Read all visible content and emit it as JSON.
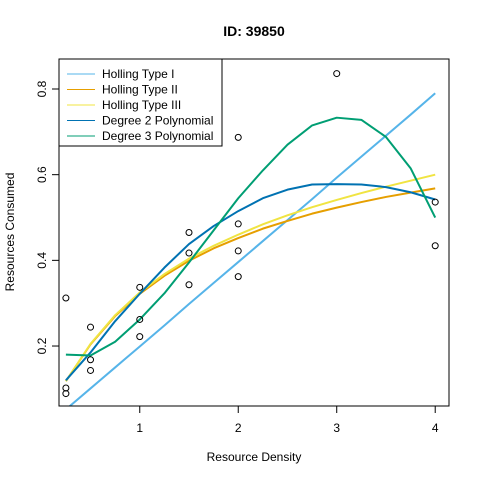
{
  "chart_data": {
    "type": "scatter",
    "title": "ID: 39850",
    "xlabel": "Resource Density",
    "ylabel": "Resources Consumed",
    "xlim": [
      0.18,
      4.14
    ],
    "ylim": [
      0.06,
      0.87
    ],
    "xticks": [
      1,
      2,
      3,
      4
    ],
    "yticks": [
      0.2,
      0.4,
      0.6,
      0.8
    ],
    "grid": false,
    "legend_position": "top-left",
    "points": [
      {
        "x": 0.25,
        "y": 0.312
      },
      {
        "x": 0.25,
        "y": 0.102
      },
      {
        "x": 0.25,
        "y": 0.089
      },
      {
        "x": 0.5,
        "y": 0.244
      },
      {
        "x": 0.5,
        "y": 0.168
      },
      {
        "x": 0.5,
        "y": 0.143
      },
      {
        "x": 1.0,
        "y": 0.337
      },
      {
        "x": 1.0,
        "y": 0.262
      },
      {
        "x": 1.0,
        "y": 0.222
      },
      {
        "x": 1.5,
        "y": 0.465
      },
      {
        "x": 1.5,
        "y": 0.417
      },
      {
        "x": 1.5,
        "y": 0.343
      },
      {
        "x": 2.0,
        "y": 0.687
      },
      {
        "x": 2.0,
        "y": 0.485
      },
      {
        "x": 2.0,
        "y": 0.422
      },
      {
        "x": 2.0,
        "y": 0.362
      },
      {
        "x": 3.0,
        "y": 0.836
      },
      {
        "x": 4.0,
        "y": 0.536
      },
      {
        "x": 4.0,
        "y": 0.434
      }
    ],
    "series": [
      {
        "name": "Holling Type I",
        "color": "#56B4E9",
        "x": [
          0.25,
          0.5,
          0.75,
          1.0,
          1.25,
          1.5,
          1.75,
          2.0,
          2.25,
          2.5,
          2.75,
          3.0,
          3.25,
          3.5,
          3.75,
          4.0
        ],
        "y": [
          0.052,
          0.101,
          0.15,
          0.199,
          0.248,
          0.298,
          0.347,
          0.396,
          0.445,
          0.494,
          0.543,
          0.593,
          0.642,
          0.691,
          0.74,
          0.79
        ]
      },
      {
        "name": "Holling Type II",
        "color": "#E69F00",
        "x": [
          0.25,
          0.5,
          0.75,
          1.0,
          1.25,
          1.5,
          1.75,
          2.0,
          2.25,
          2.5,
          2.75,
          3.0,
          3.25,
          3.5,
          3.75,
          4.0
        ],
        "y": [
          0.118,
          0.204,
          0.27,
          0.322,
          0.364,
          0.399,
          0.428,
          0.452,
          0.474,
          0.492,
          0.509,
          0.523,
          0.536,
          0.548,
          0.558,
          0.568
        ]
      },
      {
        "name": "Holling Type III",
        "color": "#F0E442",
        "x": [
          0.25,
          0.5,
          0.75,
          1.0,
          1.25,
          1.5,
          1.75,
          2.0,
          2.25,
          2.5,
          2.75,
          3.0,
          3.25,
          3.5,
          3.75,
          4.0
        ],
        "y": [
          0.118,
          0.205,
          0.272,
          0.325,
          0.368,
          0.404,
          0.434,
          0.46,
          0.484,
          0.505,
          0.524,
          0.541,
          0.557,
          0.572,
          0.586,
          0.6
        ]
      },
      {
        "name": "Degree 2 Polynomial",
        "color": "#0072B2",
        "x": [
          0.25,
          0.5,
          0.75,
          1.0,
          1.25,
          1.5,
          1.75,
          2.0,
          2.25,
          2.5,
          2.75,
          3.0,
          3.25,
          3.5,
          3.75,
          4.0
        ],
        "y": [
          0.12,
          0.185,
          0.258,
          0.322,
          0.383,
          0.438,
          0.48,
          0.515,
          0.545,
          0.565,
          0.577,
          0.578,
          0.577,
          0.571,
          0.559,
          0.542
        ]
      },
      {
        "name": "Degree 3 Polynomial",
        "color": "#009E73",
        "x": [
          0.25,
          0.5,
          0.75,
          1.0,
          1.25,
          1.5,
          1.75,
          2.0,
          2.25,
          2.5,
          2.75,
          3.0,
          3.25,
          3.5,
          3.75,
          4.0
        ],
        "y": [
          0.18,
          0.178,
          0.21,
          0.262,
          0.323,
          0.395,
          0.47,
          0.545,
          0.61,
          0.67,
          0.715,
          0.733,
          0.728,
          0.688,
          0.615,
          0.5
        ]
      }
    ]
  }
}
